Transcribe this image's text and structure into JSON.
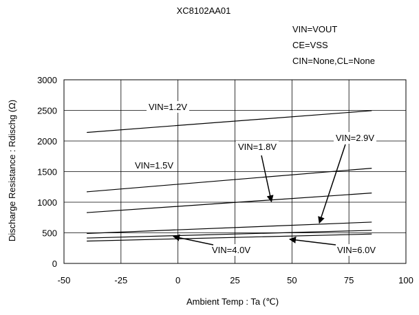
{
  "chart_data": {
    "type": "line",
    "title": "XC8102AA01",
    "conditions": [
      "VIN=VOUT",
      "CE=VSS",
      "CIN=None,CL=None"
    ],
    "xlabel": "Ambient Temp : Ta (℃)",
    "ylabel": "Discharge Resistance : Rdischg (Ω)",
    "xlim": [
      -50,
      100
    ],
    "ylim": [
      0,
      3000
    ],
    "xticks": [
      -50,
      -25,
      0,
      25,
      50,
      75,
      100
    ],
    "yticks": [
      0,
      500,
      1000,
      1500,
      2000,
      2500,
      3000
    ],
    "grid": true,
    "series": [
      {
        "name": "VIN=1.2V",
        "x": [
          -40,
          85
        ],
        "y": [
          2140,
          2495
        ]
      },
      {
        "name": "VIN=1.5V",
        "x": [
          -40,
          85
        ],
        "y": [
          1170,
          1555
        ]
      },
      {
        "name": "VIN=1.8V",
        "x": [
          -40,
          85
        ],
        "y": [
          830,
          1150
        ]
      },
      {
        "name": "VIN=2.9V",
        "x": [
          -40,
          85
        ],
        "y": [
          490,
          675
        ]
      },
      {
        "name": "VIN=4.0V",
        "x": [
          -40,
          85
        ],
        "y": [
          415,
          540
        ]
      },
      {
        "name": "VIN=6.0V",
        "x": [
          -40,
          85
        ],
        "y": [
          365,
          480
        ]
      }
    ],
    "annotations": [
      {
        "label": "VIN=1.2V"
      },
      {
        "label": "VIN=1.5V"
      },
      {
        "label": "VIN=1.8V",
        "arrow_to": [
          41,
          1010
        ]
      },
      {
        "label": "VIN=2.9V",
        "arrow_to": [
          62,
          660
        ]
      },
      {
        "label": "VIN=4.0V",
        "arrow_to": [
          -2,
          440
        ]
      },
      {
        "label": "VIN=6.0V",
        "arrow_to": [
          49,
          395
        ]
      }
    ]
  }
}
